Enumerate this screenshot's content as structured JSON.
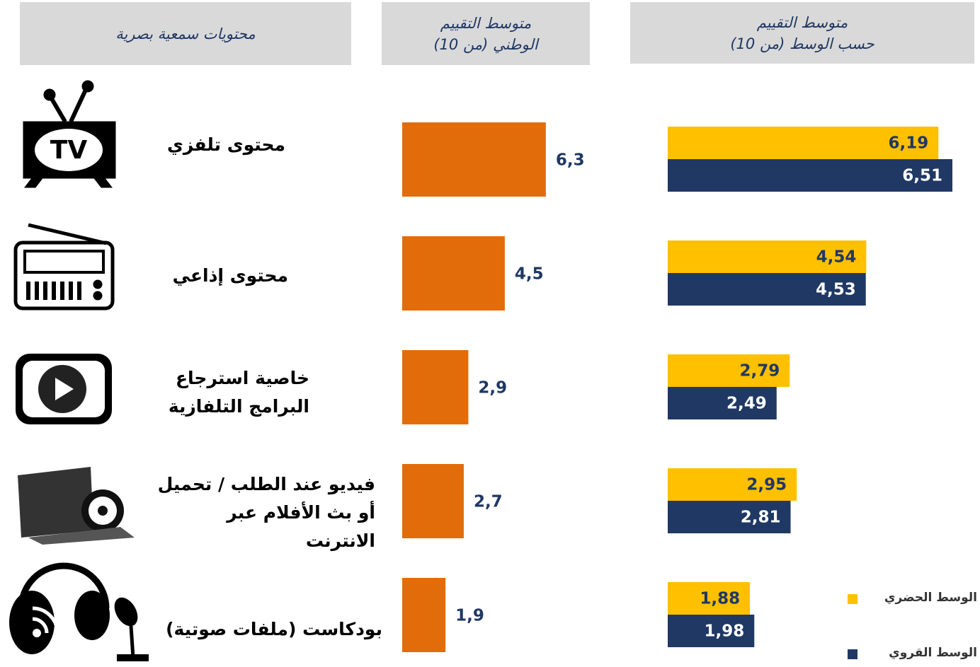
{
  "headers": [
    [
      "محتويات سمعية بصرية"
    ],
    [
      "متوسط التقييم",
      "الوطني (من 10)"
    ],
    [
      "متوسط التقييم",
      "حسب الوسط (من 10)"
    ]
  ],
  "chart_data": [
    {
      "type": "bar",
      "orientation": "horizontal",
      "categories": [
        "محتوى تلفزي",
        "محتوى إذاعي",
        "خاصية استرجاع\nالبرامج التلفازية",
        "فيديو عند الطلب / تحميل\nأو بث الأفلام عبر\nالانترنت",
        "بودكاست (ملفات صوتية)"
      ],
      "values": [
        6.3,
        4.5,
        2.9,
        2.7,
        1.9
      ],
      "value_labels": [
        "6,3",
        "4,5",
        "2,9",
        "2,7",
        "1,9"
      ],
      "color": "#e36c0a"
    },
    {
      "type": "grouped_bar",
      "orientation": "horizontal",
      "series": [
        {
          "name": "الوسط الحضري",
          "color": "#ffc000",
          "values": [
            6.19,
            4.54,
            2.79,
            2.95,
            1.88
          ],
          "value_labels": [
            "6,19",
            "4,54",
            "2,79",
            "2,95",
            "1,88"
          ]
        },
        {
          "name": "الوسط القروي",
          "color": "#203864",
          "values": [
            6.51,
            4.53,
            2.49,
            2.81,
            1.98
          ],
          "value_labels": [
            "6,51",
            "4,53",
            "2,49",
            "2,81",
            "1,98"
          ]
        }
      ]
    }
  ]
}
